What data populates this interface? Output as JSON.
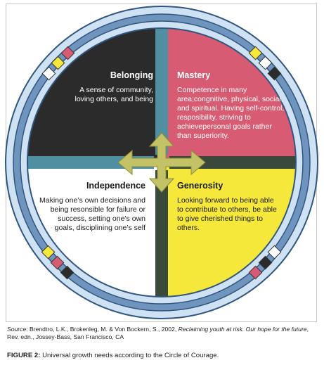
{
  "quadrants": {
    "belonging": {
      "title": "Belonging",
      "body": "A sense of community, loving others, and being",
      "color": "#2c2b2c"
    },
    "mastery": {
      "title": "Mastery",
      "body": "Competence in many area;congnitive, physical, social, and spiritual. Having self-control, resposibility, striving to achievepersonal goals rather than superiority.",
      "color": "#d75c73"
    },
    "independence": {
      "title": "Independence",
      "body": "Making one’s own decisions and being resonsible for failure or success, setting one’s own goals, disciplining one’s self",
      "color": "#ffffff"
    },
    "generosity": {
      "title": "Generosity",
      "body": "Looking forward to being able to contribute to others, be able to give cherished things to others.",
      "color": "#f5e83b"
    }
  },
  "colors": {
    "cross_arrow": "#c3c266",
    "band_blue": "#4f8fa1",
    "band_dark": "#3a4a3a",
    "ring_light": "#cfe2f3",
    "ring_mid": "#6f95bf",
    "ring_dark": "#30557f"
  },
  "source": {
    "label": "Source",
    "text_a": ": Brendtro, L.K., Brokenleg, M. & Von Bockern, S., 2002, ",
    "title": "Reclaiming youth at risk. Our hope for the future",
    "text_b": ", Rev. edn., Jossey-Bass, San Francisco, CA"
  },
  "caption": {
    "label": "FIGURE 2:",
    "text": " Universal growth needs according to the Circle of Courage."
  }
}
